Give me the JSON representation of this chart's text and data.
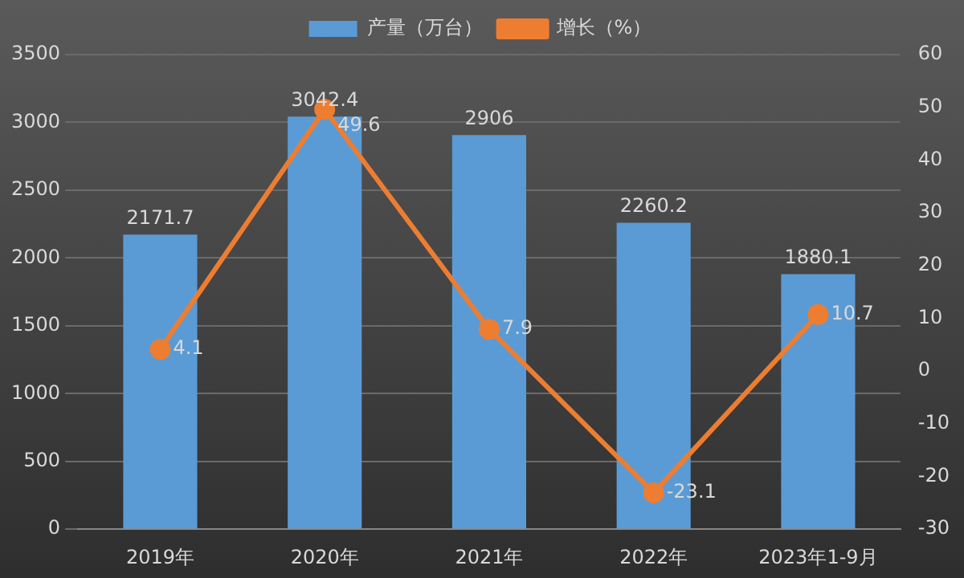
{
  "chart_data": {
    "type": "bar",
    "categories": [
      "2019年",
      "2020年",
      "2021年",
      "2022年",
      "2023年1-9月"
    ],
    "series": [
      {
        "name": "产量（万台）",
        "color": "#5b9bd5",
        "values": [
          2171.7,
          3042.4,
          2906,
          2260.2,
          1880.1
        ]
      },
      {
        "name": "增长（%）",
        "type": "line",
        "axis": "y2",
        "color": "#ed7d31",
        "values": [
          4.1,
          49.6,
          7.9,
          -23.1,
          10.7
        ]
      }
    ],
    "ylim": [
      0,
      3500
    ],
    "yticks": [
      0,
      500,
      1000,
      1500,
      2000,
      2500,
      3000,
      3500
    ],
    "y2lim": [
      -30,
      60
    ],
    "y2ticks": [
      -30,
      -20,
      -10,
      0,
      10,
      20,
      30,
      40,
      50,
      60
    ],
    "grid": "y",
    "legend": "top",
    "marker": "circle",
    "data_labels": true
  }
}
